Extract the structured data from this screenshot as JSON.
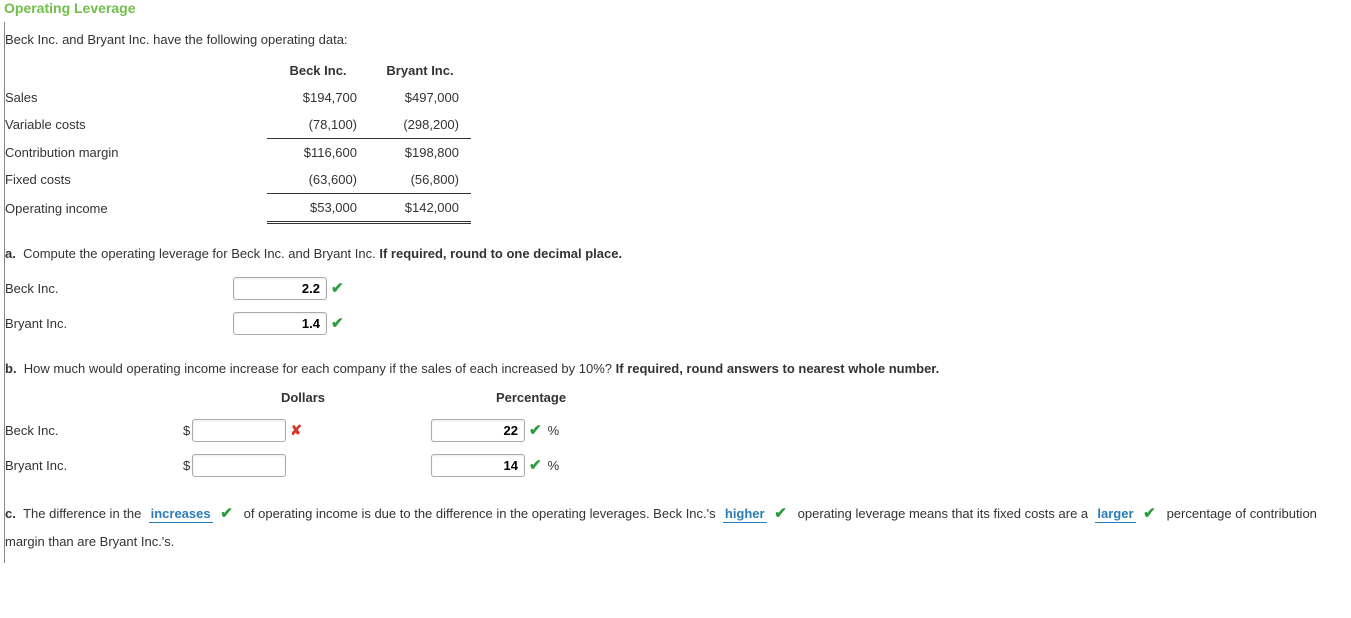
{
  "title": "Operating Leverage",
  "intro": "Beck Inc. and Bryant Inc. have the following operating data:",
  "dataTable": {
    "cols": [
      "Beck Inc.",
      "Bryant Inc."
    ],
    "rows": [
      {
        "label": "Sales",
        "beck": "$194,700",
        "bryant": "$497,000",
        "style": "plain"
      },
      {
        "label": "Variable costs",
        "beck": "(78,100)",
        "bryant": "(298,200)",
        "style": "underline"
      },
      {
        "label": "Contribution margin",
        "beck": "$116,600",
        "bryant": "$198,800",
        "style": "plain"
      },
      {
        "label": "Fixed costs",
        "beck": "(63,600)",
        "bryant": "(56,800)",
        "style": "underline"
      },
      {
        "label": "Operating income",
        "beck": "$53,000",
        "bryant": "$142,000",
        "style": "double"
      }
    ]
  },
  "partA": {
    "letter": "a.",
    "text": "Compute the operating leverage for Beck Inc. and Bryant Inc.",
    "bold": "If required, round to one decimal place.",
    "rows": [
      {
        "label": "Beck Inc.",
        "value": "2.2",
        "mark": "check"
      },
      {
        "label": "Bryant Inc.",
        "value": "1.4",
        "mark": "check"
      }
    ]
  },
  "partB": {
    "letter": "b.",
    "text": "How much would operating income increase for each company if the sales of each increased by 10%?",
    "bold": "If required, round answers to nearest whole number.",
    "headers": {
      "dollars": "Dollars",
      "pct": "Percentage"
    },
    "rows": [
      {
        "label": "Beck Inc.",
        "dollars": "",
        "dollars_mark": "cross",
        "pct": "22",
        "pct_mark": "check"
      },
      {
        "label": "Bryant Inc.",
        "dollars": "",
        "dollars_mark": "none",
        "pct": "14",
        "pct_mark": "check"
      }
    ]
  },
  "partC": {
    "letter": "c.",
    "seg1": "The difference in the",
    "drop1": "increases",
    "drop1_mark": "check",
    "seg2": "of operating income is due to the difference in the operating leverages. Beck Inc.'s",
    "drop2": "higher",
    "drop2_mark": "check",
    "seg3": "operating leverage means that its fixed costs are a",
    "drop3": "larger",
    "drop3_mark": "check",
    "seg4": "percentage of contribution margin than are Bryant Inc.'s."
  },
  "icons": {
    "check": "✔",
    "cross": "✘"
  }
}
